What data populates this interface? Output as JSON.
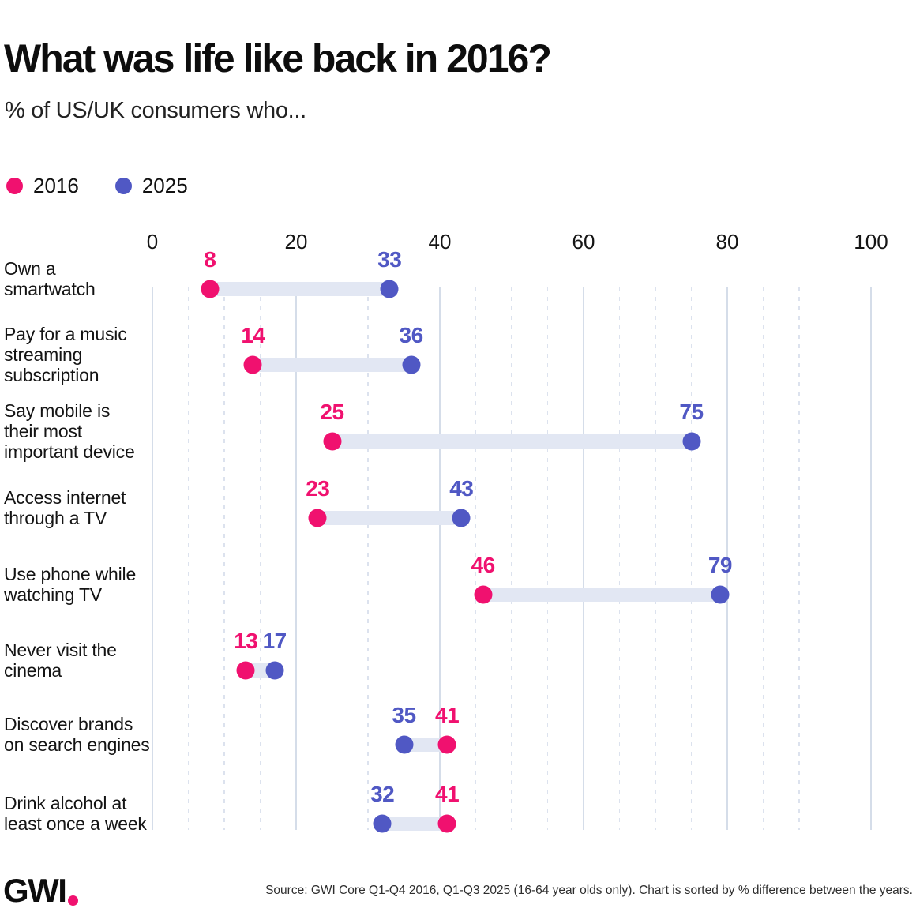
{
  "header": {
    "title": "What was life like back in 2016?",
    "subtitle": "% of US/UK consumers who..."
  },
  "legend": {
    "items": [
      {
        "label": "2016",
        "color": "#F0116F"
      },
      {
        "label": "2025",
        "color": "#5058C4"
      }
    ]
  },
  "chart_data": {
    "type": "dumbbell",
    "categories": [
      "Own a\nsmartwatch",
      "Pay for a music\nstreaming\nsubscription",
      "Say mobile is\ntheir most\nimportant device",
      "Access internet\nthrough a TV",
      "Use phone while\nwatching TV",
      "Never visit the\ncinema",
      "Discover brands\non search engines",
      "Drink alcohol at\nleast once a week"
    ],
    "series": [
      {
        "name": "2016",
        "color": "#F0116F",
        "values": [
          8,
          14,
          25,
          23,
          46,
          13,
          41,
          41
        ]
      },
      {
        "name": "2025",
        "color": "#5058C4",
        "values": [
          33,
          36,
          75,
          43,
          79,
          17,
          35,
          32
        ]
      }
    ],
    "xlim": [
      0,
      100
    ],
    "ticks": [
      0,
      20,
      40,
      60,
      80,
      100
    ],
    "minor_tick_step": 5,
    "grid": true,
    "connector_color": "#E2E7F3",
    "legend_position": "top-left",
    "sort_note": "sorted by % difference between the years"
  },
  "footer": {
    "logo": "GWI",
    "source": "Source: GWI Core Q1-Q4 2016, Q1-Q3 2025 (16-64 year olds only). Chart is sorted by % difference between the years."
  }
}
